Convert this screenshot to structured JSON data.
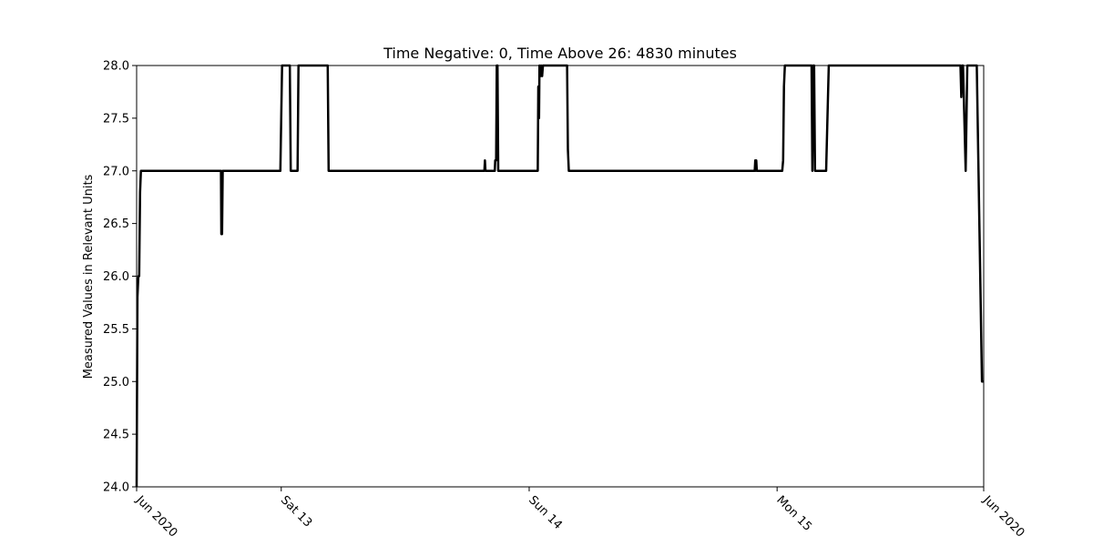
{
  "chart_data": {
    "type": "line",
    "title": "Time Negative: 0, Time Above 26: 4830 minutes",
    "xlabel": "",
    "ylabel": "Measured Values in Relevant Units",
    "x_axis_kind": "date",
    "xlim": [
      "2020-06-12T10:00",
      "2020-06-15T20:00"
    ],
    "ylim": [
      24.0,
      28.0
    ],
    "grid": false,
    "line_color": "#000000",
    "x_ticks": [
      {
        "x": "2020-06-12T10:00",
        "label": "Jun 2020"
      },
      {
        "x": "2020-06-13T00:00",
        "label": "Sat 13"
      },
      {
        "x": "2020-06-14T00:00",
        "label": "Sun 14"
      },
      {
        "x": "2020-06-15T00:00",
        "label": "Mon 15"
      },
      {
        "x": "2020-06-15T20:00",
        "label": "Jun 2020"
      }
    ],
    "y_ticks": [
      {
        "y": 24.0,
        "label": "24.0"
      },
      {
        "y": 24.5,
        "label": "24.5"
      },
      {
        "y": 25.0,
        "label": "25.0"
      },
      {
        "y": 25.5,
        "label": "25.5"
      },
      {
        "y": 26.0,
        "label": "26.0"
      },
      {
        "y": 26.5,
        "label": "26.5"
      },
      {
        "y": 27.0,
        "label": "27.0"
      },
      {
        "y": 27.5,
        "label": "27.5"
      },
      {
        "y": 28.0,
        "label": "28.0"
      }
    ],
    "series": [
      {
        "x": [
          "2020-06-12T10:00",
          "2020-06-12T10:05",
          "2020-06-12T10:10",
          "2020-06-12T10:15",
          "2020-06-12T10:20",
          "2020-06-12T10:25",
          "2020-06-12T10:30",
          "2020-06-12T10:35",
          "2020-06-12T10:40",
          "2020-06-12T18:10",
          "2020-06-12T18:12",
          "2020-06-12T18:16",
          "2020-06-12T18:20",
          "2020-06-12T23:55",
          "2020-06-13T00:05",
          "2020-06-13T00:10",
          "2020-06-13T00:50",
          "2020-06-13T00:55",
          "2020-06-13T01:30",
          "2020-06-13T01:35",
          "2020-06-13T01:40",
          "2020-06-13T04:30",
          "2020-06-13T04:35",
          "2020-06-13T19:40",
          "2020-06-13T19:43",
          "2020-06-13T19:46",
          "2020-06-13T20:40",
          "2020-06-13T20:43",
          "2020-06-13T20:48",
          "2020-06-13T20:52",
          "2020-06-13T20:56",
          "2020-06-13T21:00",
          "2020-06-14T00:45",
          "2020-06-14T00:50",
          "2020-06-14T00:53",
          "2020-06-14T00:57",
          "2020-06-14T01:00",
          "2020-06-14T01:05",
          "2020-06-14T01:10",
          "2020-06-14T01:15",
          "2020-06-14T01:20",
          "2020-06-14T01:25",
          "2020-06-14T01:30",
          "2020-06-14T03:40",
          "2020-06-14T03:45",
          "2020-06-14T03:50",
          "2020-06-14T21:50",
          "2020-06-14T21:53",
          "2020-06-14T21:56",
          "2020-06-14T21:59",
          "2020-06-14T22:02",
          "2020-06-15T00:30",
          "2020-06-15T00:35",
          "2020-06-15T00:40",
          "2020-06-15T00:45",
          "2020-06-15T00:55",
          "2020-06-15T03:20",
          "2020-06-15T03:25",
          "2020-06-15T03:30",
          "2020-06-15T03:35",
          "2020-06-15T03:40",
          "2020-06-15T03:45",
          "2020-06-15T04:45",
          "2020-06-15T05:00",
          "2020-06-15T05:10",
          "2020-06-15T17:35",
          "2020-06-15T17:40",
          "2020-06-15T17:45",
          "2020-06-15T17:50",
          "2020-06-15T17:55",
          "2020-06-15T18:00",
          "2020-06-15T18:15",
          "2020-06-15T18:25",
          "2020-06-15T19:10",
          "2020-06-15T19:20",
          "2020-06-15T19:30",
          "2020-06-15T19:40",
          "2020-06-15T19:50",
          "2020-06-15T20:00"
        ],
        "values": [
          24.0,
          25.8,
          26.0,
          26.0,
          26.8,
          27.0,
          27.0,
          27.0,
          27.0,
          27.0,
          26.4,
          26.4,
          27.0,
          27.0,
          28.0,
          28.0,
          28.0,
          27.0,
          27.0,
          27.0,
          28.0,
          28.0,
          27.0,
          27.0,
          27.1,
          27.0,
          27.0,
          27.1,
          27.1,
          28.0,
          28.0,
          27.0,
          27.0,
          27.0,
          27.8,
          27.5,
          28.0,
          27.9,
          28.0,
          27.9,
          28.0,
          28.0,
          28.0,
          28.0,
          27.2,
          27.0,
          27.0,
          27.1,
          27.0,
          27.1,
          27.0,
          27.0,
          27.1,
          27.8,
          28.0,
          28.0,
          28.0,
          27.0,
          28.0,
          28.0,
          27.0,
          27.0,
          27.0,
          28.0,
          28.0,
          28.0,
          28.0,
          28.0,
          27.7,
          28.0,
          28.0,
          27.0,
          28.0,
          28.0,
          28.0,
          27.0,
          26.0,
          25.0,
          25.0
        ]
      }
    ]
  }
}
